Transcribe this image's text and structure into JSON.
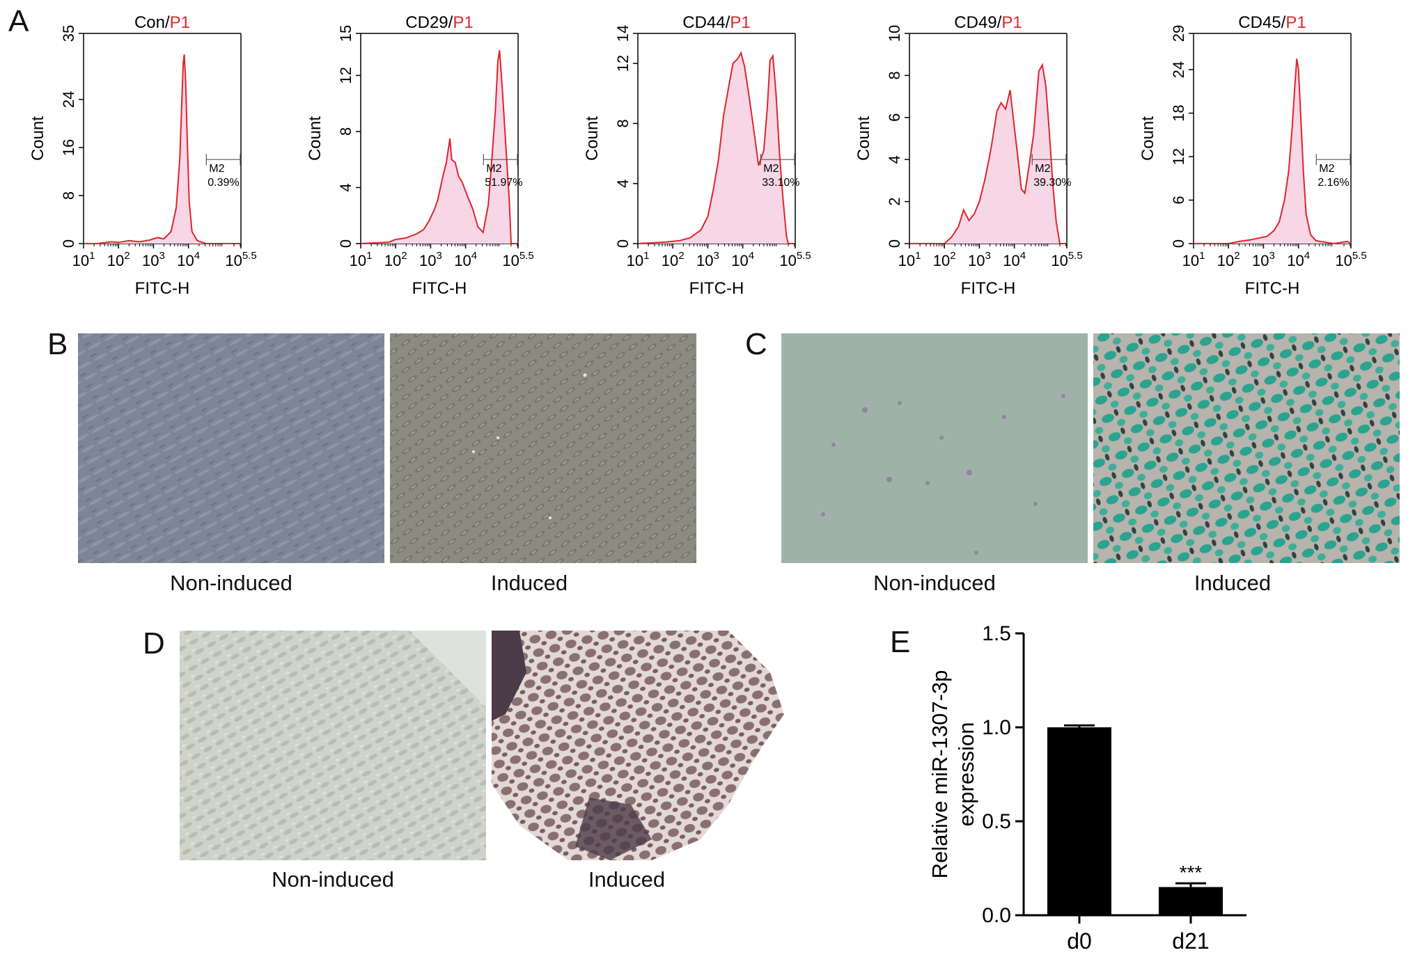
{
  "panels": {
    "A": {
      "letter": "A"
    },
    "B": {
      "letter": "B",
      "left_caption": "Non-induced",
      "right_caption": "Induced"
    },
    "C": {
      "letter": "C",
      "left_caption": "Non-induced",
      "right_caption": "Induced"
    },
    "D": {
      "letter": "D",
      "left_caption": "Non-induced",
      "right_caption": "Induced"
    },
    "E": {
      "letter": "E"
    }
  },
  "colors": {
    "trace": "#e0242b",
    "fill": "#f7d6e6",
    "title_red": "#e0242b",
    "bar": "#000000",
    "phase_gray": "#7d8696",
    "phase_tan": "#8b8b82",
    "stain_green": "#2aa38f",
    "stain_bg": "#9fb2a8"
  },
  "chart_data": [
    {
      "type": "area",
      "title_prefix": "Con/",
      "title_suffix": "P1",
      "xlabel": "FITC-H",
      "ylabel": "Count",
      "xscale": "log",
      "xlim_exp": [
        1,
        5.5
      ],
      "xticks": [
        "10",
        "1",
        "10",
        "2",
        "10",
        "3",
        "10",
        "4",
        "10",
        "5.5"
      ],
      "ylim": [
        0,
        35
      ],
      "yticks": [
        0,
        8,
        16,
        24,
        35
      ],
      "gate": {
        "name": "M2",
        "percent": "0.39%"
      },
      "points": [
        [
          1.0,
          0
        ],
        [
          1.4,
          0
        ],
        [
          1.8,
          0.3
        ],
        [
          2.0,
          0.2
        ],
        [
          2.3,
          0.5
        ],
        [
          2.6,
          0.3
        ],
        [
          2.9,
          0.6
        ],
        [
          3.1,
          1
        ],
        [
          3.3,
          0.8
        ],
        [
          3.5,
          2
        ],
        [
          3.65,
          6
        ],
        [
          3.75,
          14
        ],
        [
          3.8,
          22
        ],
        [
          3.85,
          30
        ],
        [
          3.88,
          31.5
        ],
        [
          3.92,
          27
        ],
        [
          3.97,
          16
        ],
        [
          4.02,
          7
        ],
        [
          4.1,
          2
        ],
        [
          4.25,
          0.5
        ],
        [
          4.5,
          0
        ],
        [
          5.5,
          0
        ]
      ]
    },
    {
      "type": "area",
      "title_prefix": "CD29/",
      "title_suffix": "P1",
      "xlabel": "FITC-H",
      "ylabel": "Count",
      "xscale": "log",
      "xlim_exp": [
        1,
        5.5
      ],
      "xticks": [
        "10",
        "1",
        "10",
        "2",
        "10",
        "3",
        "10",
        "4",
        "10",
        "5.5"
      ],
      "ylim": [
        0,
        15
      ],
      "yticks": [
        0,
        4,
        8,
        12,
        15
      ],
      "gate": {
        "name": "M2",
        "percent": "51.97%"
      },
      "points": [
        [
          1.0,
          0
        ],
        [
          1.8,
          0.1
        ],
        [
          2.0,
          0.3
        ],
        [
          2.3,
          0.4
        ],
        [
          2.6,
          0.7
        ],
        [
          2.8,
          1
        ],
        [
          2.95,
          1.6
        ],
        [
          3.1,
          2.4
        ],
        [
          3.2,
          3.1
        ],
        [
          3.35,
          4.8
        ],
        [
          3.45,
          5.8
        ],
        [
          3.55,
          7.5
        ],
        [
          3.6,
          6
        ],
        [
          3.7,
          5.8
        ],
        [
          3.8,
          4.8
        ],
        [
          3.9,
          4.4
        ],
        [
          4.05,
          3.4
        ],
        [
          4.2,
          2.5
        ],
        [
          4.35,
          1.2
        ],
        [
          4.5,
          0.8
        ],
        [
          4.65,
          2.8
        ],
        [
          4.75,
          6
        ],
        [
          4.85,
          9.5
        ],
        [
          4.92,
          13
        ],
        [
          4.97,
          13.8
        ],
        [
          5.05,
          11
        ],
        [
          5.15,
          7
        ],
        [
          5.25,
          3
        ],
        [
          5.3,
          0
        ],
        [
          5.5,
          0
        ]
      ]
    },
    {
      "type": "area",
      "title_prefix": "CD44/",
      "title_suffix": "P1",
      "xlabel": "FITC-H",
      "ylabel": "Count",
      "xscale": "log",
      "xlim_exp": [
        1,
        5.5
      ],
      "xticks": [
        "10",
        "1",
        "10",
        "2",
        "10",
        "3",
        "10",
        "4",
        "10",
        "5.5"
      ],
      "ylim": [
        0,
        14
      ],
      "yticks": [
        0,
        4,
        8,
        12,
        14
      ],
      "gate": {
        "name": "M2",
        "percent": "33.10%"
      },
      "points": [
        [
          1.0,
          0
        ],
        [
          1.8,
          0.1
        ],
        [
          2.2,
          0.2
        ],
        [
          2.5,
          0.4
        ],
        [
          2.8,
          0.9
        ],
        [
          3.0,
          1.8
        ],
        [
          3.15,
          3.5
        ],
        [
          3.3,
          5.5
        ],
        [
          3.45,
          8.5
        ],
        [
          3.6,
          10.5
        ],
        [
          3.72,
          12
        ],
        [
          3.85,
          12.3
        ],
        [
          3.95,
          12.7
        ],
        [
          4.05,
          11.8
        ],
        [
          4.2,
          9.5
        ],
        [
          4.35,
          7
        ],
        [
          4.45,
          5.2
        ],
        [
          4.6,
          6.2
        ],
        [
          4.7,
          9
        ],
        [
          4.78,
          12.2
        ],
        [
          4.86,
          12.5
        ],
        [
          4.95,
          10
        ],
        [
          5.05,
          6
        ],
        [
          5.15,
          3
        ],
        [
          5.25,
          0.5
        ],
        [
          5.3,
          0
        ],
        [
          5.5,
          0
        ]
      ]
    },
    {
      "type": "area",
      "title_prefix": "CD49/",
      "title_suffix": "P1",
      "xlabel": "FITC-H",
      "ylabel": "Count",
      "xscale": "log",
      "xlim_exp": [
        1,
        5.5
      ],
      "xticks": [
        "10",
        "1",
        "10",
        "2",
        "10",
        "3",
        "10",
        "4",
        "10",
        "5.5"
      ],
      "ylim": [
        0,
        10
      ],
      "yticks": [
        0,
        2,
        4,
        6,
        8,
        10
      ],
      "gate": {
        "name": "M2",
        "percent": "39.30%"
      },
      "points": [
        [
          1.0,
          0
        ],
        [
          2.0,
          0
        ],
        [
          2.2,
          0.3
        ],
        [
          2.4,
          0.8
        ],
        [
          2.55,
          1.6
        ],
        [
          2.7,
          1.1
        ],
        [
          2.85,
          1.4
        ],
        [
          3.0,
          2
        ],
        [
          3.15,
          3
        ],
        [
          3.25,
          3.8
        ],
        [
          3.35,
          4.7
        ],
        [
          3.5,
          6.3
        ],
        [
          3.62,
          6.7
        ],
        [
          3.75,
          6.4
        ],
        [
          3.88,
          7.3
        ],
        [
          3.98,
          5.8
        ],
        [
          4.1,
          4.1
        ],
        [
          4.2,
          2.6
        ],
        [
          4.3,
          2.4
        ],
        [
          4.42,
          3.7
        ],
        [
          4.55,
          5.2
        ],
        [
          4.7,
          8.2
        ],
        [
          4.8,
          8.5
        ],
        [
          4.9,
          7.5
        ],
        [
          5.0,
          5.3
        ],
        [
          5.1,
          2.8
        ],
        [
          5.2,
          1
        ],
        [
          5.3,
          0
        ],
        [
          5.5,
          0
        ]
      ]
    },
    {
      "type": "area",
      "title_prefix": "CD45/",
      "title_suffix": "P1",
      "xlabel": "FITC-H",
      "ylabel": "Count",
      "xscale": "log",
      "xlim_exp": [
        1,
        5.5
      ],
      "xticks": [
        "10",
        "1",
        "10",
        "2",
        "10",
        "3",
        "10",
        "4",
        "10",
        "5.5"
      ],
      "ylim": [
        0,
        29
      ],
      "yticks": [
        0,
        6,
        12,
        18,
        24,
        29
      ],
      "gate": {
        "name": "M2",
        "percent": "2.16%"
      },
      "points": [
        [
          1.0,
          0
        ],
        [
          2.0,
          0
        ],
        [
          2.3,
          0.3
        ],
        [
          2.6,
          0.5
        ],
        [
          2.9,
          0.8
        ],
        [
          3.1,
          1
        ],
        [
          3.3,
          1.8
        ],
        [
          3.45,
          3
        ],
        [
          3.6,
          6
        ],
        [
          3.72,
          10
        ],
        [
          3.82,
          16
        ],
        [
          3.9,
          22
        ],
        [
          3.95,
          25.5
        ],
        [
          4.0,
          24
        ],
        [
          4.06,
          18
        ],
        [
          4.14,
          10
        ],
        [
          4.22,
          4
        ],
        [
          4.35,
          1.2
        ],
        [
          4.5,
          0.4
        ],
        [
          5.0,
          0
        ],
        [
          5.4,
          0.3
        ],
        [
          5.5,
          0
        ]
      ]
    },
    {
      "type": "bar",
      "categories": [
        "d0",
        "d21"
      ],
      "values": [
        1.0,
        0.15
      ],
      "errors": [
        0.01,
        0.02
      ],
      "annotations": [
        "",
        "***"
      ],
      "ylabel_line1": "Relative miR-1307-3p",
      "ylabel_line2": "expression",
      "ylim": [
        0,
        1.5
      ],
      "yticks": [
        "0.0",
        "0.5",
        "1.0",
        "1.5"
      ]
    }
  ]
}
